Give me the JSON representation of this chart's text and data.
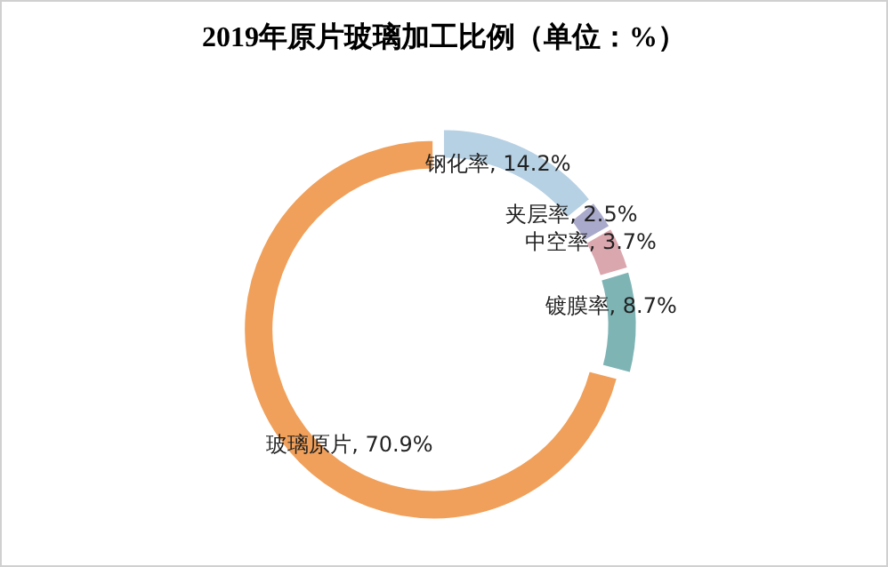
{
  "chart_data": {
    "type": "donut",
    "title": "2019年原片玻璃加工比例（单位：%）",
    "categories": [
      "钢化率",
      "夹层率",
      "中空率",
      "镀膜率",
      "玻璃原片"
    ],
    "values": [
      14.2,
      2.5,
      3.7,
      8.7,
      70.9
    ],
    "colors": [
      "#b7d1e4",
      "#a9a9cb",
      "#dba7ae",
      "#7fb4b5",
      "#f0a05a"
    ],
    "value_labels": [
      "14.2%",
      "2.5%",
      "3.7%",
      "8.7%",
      "70.9%"
    ]
  }
}
